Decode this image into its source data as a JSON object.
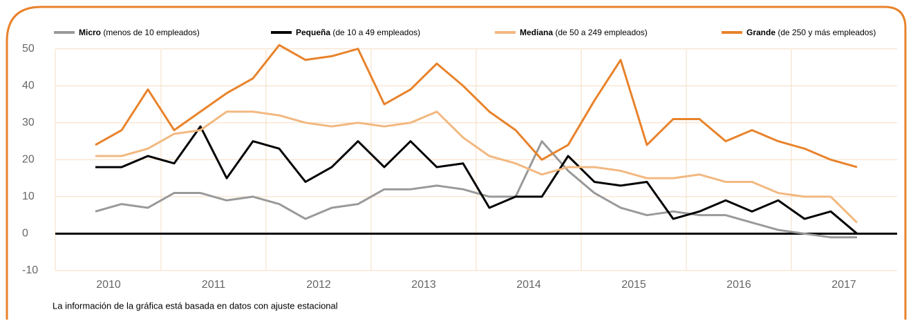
{
  "chart_data": {
    "type": "line",
    "categories": [
      "2010",
      null,
      null,
      null,
      "2011",
      null,
      null,
      null,
      "2012",
      null,
      null,
      null,
      "2013",
      null,
      null,
      null,
      "2014",
      null,
      null,
      null,
      "2015",
      null,
      null,
      null,
      "2016",
      null,
      null,
      null,
      "2017",
      null
    ],
    "series": [
      {
        "name": "Micro",
        "description": "(menos de 10 empleados)",
        "color": "#999999",
        "values": [
          6,
          8,
          7,
          11,
          11,
          9,
          10,
          8,
          4,
          7,
          8,
          12,
          12,
          13,
          12,
          10,
          10,
          25,
          17,
          11,
          7,
          5,
          6,
          5,
          5,
          3,
          1,
          0,
          -1,
          -1
        ]
      },
      {
        "name": "Pequeña",
        "description": "(de 10 a 49 empleados)",
        "color": "#000000",
        "values": [
          18,
          18,
          21,
          19,
          29,
          15,
          25,
          23,
          14,
          18,
          25,
          18,
          25,
          18,
          19,
          7,
          10,
          10,
          21,
          14,
          13,
          14,
          4,
          6,
          9,
          6,
          9,
          4,
          6,
          0
        ]
      },
      {
        "name": "Mediana",
        "description": "(de 50 a 249 empleados)",
        "color": "#f2b880",
        "values": [
          21,
          21,
          23,
          27,
          28,
          33,
          33,
          32,
          30,
          29,
          30,
          29,
          30,
          33,
          26,
          21,
          19,
          16,
          18,
          18,
          17,
          15,
          15,
          16,
          14,
          14,
          11,
          10,
          10,
          3
        ]
      },
      {
        "name": "Grande",
        "description": "(de 250 y más empleados)",
        "color": "#e8822a",
        "values": [
          24,
          28,
          39,
          28,
          33,
          38,
          42,
          51,
          47,
          48,
          50,
          35,
          39,
          46,
          40,
          33,
          28,
          20,
          24,
          36,
          47,
          24,
          31,
          31,
          25,
          28,
          25,
          23,
          20,
          18
        ]
      }
    ],
    "ylim": [
      -10,
      52
    ],
    "yticks": [
      -10,
      0,
      10,
      20,
      30,
      40,
      50
    ],
    "grid": true,
    "note": "La información de la gráfica está basada en datos con ajuste estacional"
  }
}
